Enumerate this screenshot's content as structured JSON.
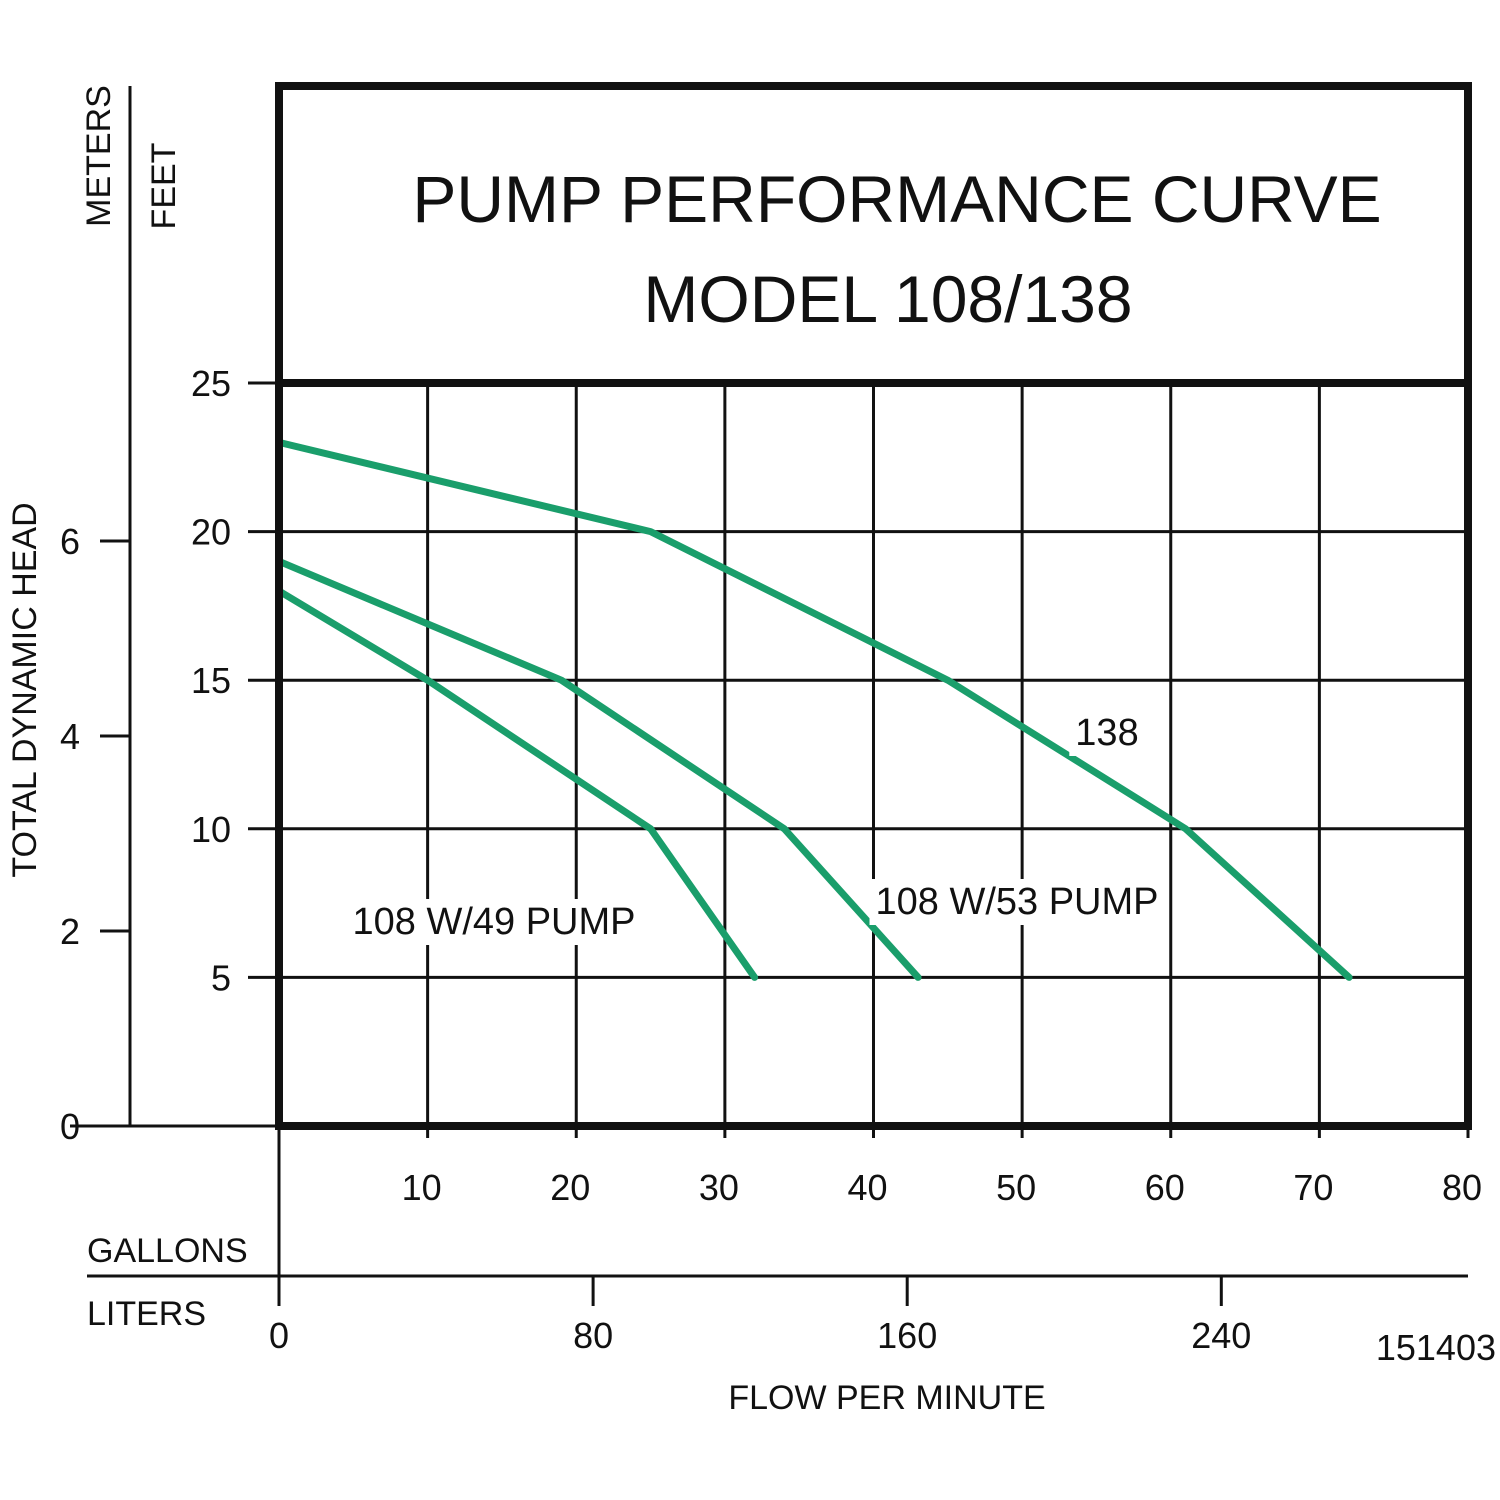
{
  "chart_data": {
    "type": "line",
    "title": [
      "PUMP PERFORMANCE CURVE",
      "MODEL 108/138"
    ],
    "xlabel": "FLOW PER MINUTE",
    "ylabel": "TOTAL DYNAMIC HEAD",
    "x_units": {
      "primary": "GALLONS",
      "secondary": "LITERS"
    },
    "y_units": {
      "primary": "FEET",
      "secondary": "METERS"
    },
    "xlim": [
      0,
      80
    ],
    "ylim": [
      0,
      25
    ],
    "grid": true,
    "x_ticks": [
      10,
      20,
      30,
      40,
      50,
      60,
      70,
      80
    ],
    "y_ticks": [
      5,
      10,
      15,
      20,
      25
    ],
    "x_secondary_ticks": [
      0,
      80,
      160,
      240
    ],
    "y_secondary_ticks": [
      0,
      2,
      4,
      6
    ],
    "series": [
      {
        "name": "138",
        "x": [
          0,
          25,
          45,
          61,
          72
        ],
        "y": [
          23,
          20,
          15,
          10,
          5
        ]
      },
      {
        "name": "108 W/53 PUMP",
        "x": [
          0,
          19,
          34,
          43
        ],
        "y": [
          19,
          15,
          10,
          5
        ]
      },
      {
        "name": "108 W/49 PUMP",
        "x": [
          0,
          10,
          25,
          32
        ],
        "y": [
          18,
          15,
          10,
          5
        ]
      }
    ],
    "annotations": [
      "151403"
    ],
    "line_color": "#1a9e6b"
  }
}
